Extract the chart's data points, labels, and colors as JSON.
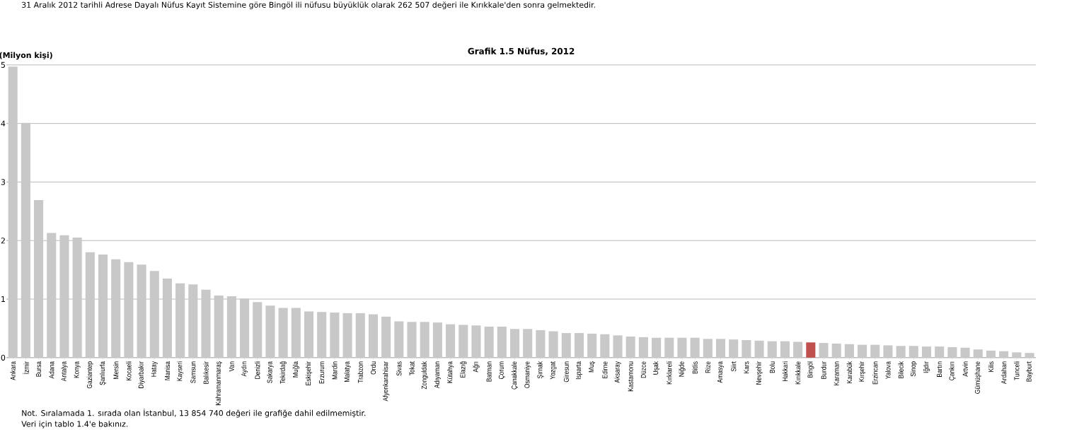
{
  "chart_data": {
    "type": "bar",
    "title": "Grafik 1.5 Nüfus, 2012",
    "ylabel": "(Milyon kişi)",
    "annotations": [
      "31 Aralık 2012 tarihli Adrese Dayalı Nüfus Kayıt Sistemine göre Bingöl ili nüfusu büyüklük olarak  262 507 değeri ile Kırıkkale'den sonra gelmektedir.",
      "Not. Sıralamada 1. sırada olan İstanbul, 13 854 740 değeri ile grafiğe dahil edilmemiştir.",
      "Veri için tablo 1.4'e bakınız."
    ],
    "categories": [
      "Ankara",
      "İzmir",
      "Bursa",
      "Adana",
      "Antalya",
      "Konya",
      "Gaziantep",
      "Şanlıurfa",
      "Mersin",
      "Kocaeli",
      "Diyarbakır",
      "Hatay",
      "Manisa",
      "Kayseri",
      "Samsun",
      "Balıkesir",
      "Kahramanmaraş",
      "Van",
      "Aydın",
      "Denizli",
      "Sakarya",
      "Tekirdağ",
      "Muğla",
      "Eskişehir",
      "Erzurum",
      "Mardin",
      "Malatya",
      "Trabzon",
      "Ordu",
      "Afyonkarahisar",
      "Sivas",
      "Tokat",
      "Zonguldak",
      "Adıyaman",
      "Kütahya",
      "Elazığ",
      "Ağrı",
      "Batman",
      "Çorum",
      "Çanakkale",
      "Osmaniye",
      "Şırnak",
      "Yozgat",
      "Giresun",
      "Isparta",
      "Muş",
      "Edirne",
      "Aksaray",
      "Kastamonu",
      "Düzce",
      "Uşak",
      "Kırklareli",
      "Niğde",
      "Bitlis",
      "Rize",
      "Amasya",
      "Siirt",
      "Kars",
      "Nevşehir",
      "Bolu",
      "Hakkari",
      "Kırıkkale",
      "Bingöl",
      "Burdur",
      "Karaman",
      "Karabük",
      "Kırşehir",
      "Erzincan",
      "Yalova",
      "Bilecik",
      "Sinop",
      "Iğdır",
      "Bartın",
      "Çankırı",
      "Artvin",
      "Gümüşhane",
      "Kilis",
      "Ardahan",
      "Tunceli",
      "Bayburt"
    ],
    "values": [
      4.97,
      4.01,
      2.69,
      2.13,
      2.09,
      2.05,
      1.8,
      1.76,
      1.68,
      1.63,
      1.59,
      1.48,
      1.35,
      1.27,
      1.25,
      1.16,
      1.06,
      1.05,
      1.01,
      0.95,
      0.89,
      0.85,
      0.85,
      0.79,
      0.78,
      0.77,
      0.76,
      0.76,
      0.74,
      0.7,
      0.62,
      0.61,
      0.61,
      0.6,
      0.57,
      0.56,
      0.55,
      0.53,
      0.53,
      0.49,
      0.49,
      0.47,
      0.45,
      0.42,
      0.42,
      0.41,
      0.4,
      0.38,
      0.36,
      0.35,
      0.34,
      0.34,
      0.34,
      0.34,
      0.32,
      0.32,
      0.31,
      0.3,
      0.29,
      0.28,
      0.28,
      0.27,
      0.26,
      0.25,
      0.24,
      0.23,
      0.22,
      0.22,
      0.21,
      0.2,
      0.2,
      0.19,
      0.19,
      0.18,
      0.17,
      0.14,
      0.12,
      0.11,
      0.09,
      0.08
    ],
    "colors": [
      "#c8c8c8",
      "#c8c8c8",
      "#c8c8c8",
      "#c8c8c8",
      "#c8c8c8",
      "#c8c8c8",
      "#c8c8c8",
      "#c8c8c8",
      "#c8c8c8",
      "#c8c8c8",
      "#c8c8c8",
      "#c8c8c8",
      "#c8c8c8",
      "#c8c8c8",
      "#c8c8c8",
      "#c8c8c8",
      "#c8c8c8",
      "#c8c8c8",
      "#c8c8c8",
      "#c8c8c8",
      "#c8c8c8",
      "#c8c8c8",
      "#c8c8c8",
      "#c8c8c8",
      "#c8c8c8",
      "#c8c8c8",
      "#c8c8c8",
      "#c8c8c8",
      "#c8c8c8",
      "#c8c8c8",
      "#c8c8c8",
      "#c8c8c8",
      "#c8c8c8",
      "#c8c8c8",
      "#c8c8c8",
      "#c8c8c8",
      "#c8c8c8",
      "#c8c8c8",
      "#c8c8c8",
      "#c8c8c8",
      "#c8c8c8",
      "#c8c8c8",
      "#c8c8c8",
      "#c8c8c8",
      "#c8c8c8",
      "#c8c8c8",
      "#c8c8c8",
      "#c8c8c8",
      "#c8c8c8",
      "#c8c8c8",
      "#c8c8c8",
      "#c8c8c8",
      "#c8c8c8",
      "#c8c8c8",
      "#c8c8c8",
      "#c8c8c8",
      "#c8c8c8",
      "#c8c8c8",
      "#c8c8c8",
      "#c8c8c8",
      "#c8c8c8",
      "#c8c8c8",
      "#c0504d",
      "#c8c8c8",
      "#c8c8c8",
      "#c8c8c8",
      "#c8c8c8",
      "#c8c8c8",
      "#c8c8c8",
      "#c8c8c8",
      "#c8c8c8",
      "#c8c8c8",
      "#c8c8c8",
      "#c8c8c8",
      "#c8c8c8",
      "#c8c8c8",
      "#c8c8c8",
      "#c8c8c8",
      "#c8c8c8",
      "#c8c8c8"
    ],
    "ylim": [
      0,
      5
    ],
    "yticks": [
      0,
      1,
      2,
      3,
      4,
      5
    ],
    "grid": "y"
  }
}
